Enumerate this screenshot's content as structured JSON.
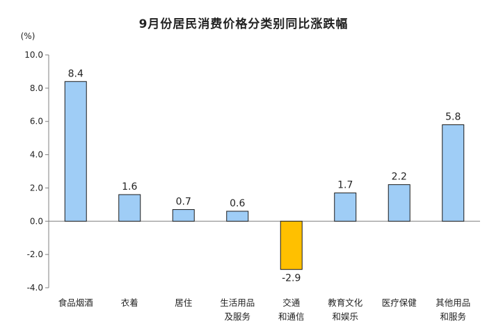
{
  "chart_data": {
    "type": "bar",
    "title": "9月份居民消费价格分类别同比涨跌幅",
    "ylabel": "(%)",
    "ylim": [
      -4,
      10
    ],
    "yticks": [
      "10.0",
      "8.0",
      "6.0",
      "4.0",
      "2.0",
      "0.0",
      "-2.0",
      "-4.0"
    ],
    "grid": false,
    "categories": [
      [
        "食品烟酒"
      ],
      [
        "衣着"
      ],
      [
        "居住"
      ],
      [
        "生活用品",
        "及服务"
      ],
      [
        "交通",
        "和通信"
      ],
      [
        "教育文化",
        "和娱乐"
      ],
      [
        "医疗保健"
      ],
      [
        "其他用品",
        "和服务"
      ]
    ],
    "values": [
      8.4,
      1.6,
      0.7,
      0.6,
      -2.9,
      1.7,
      2.2,
      5.8
    ],
    "value_labels": [
      "8.4",
      "1.6",
      "0.7",
      "0.6",
      "-2.9",
      "1.7",
      "2.2",
      "5.8"
    ],
    "colors": {
      "positive": "#9fcdf6",
      "positive_stroke": "#1a1a1a",
      "negative": "#ffc000",
      "negative_stroke": "#1a1a1a",
      "axis": "#7f7f7f"
    }
  }
}
